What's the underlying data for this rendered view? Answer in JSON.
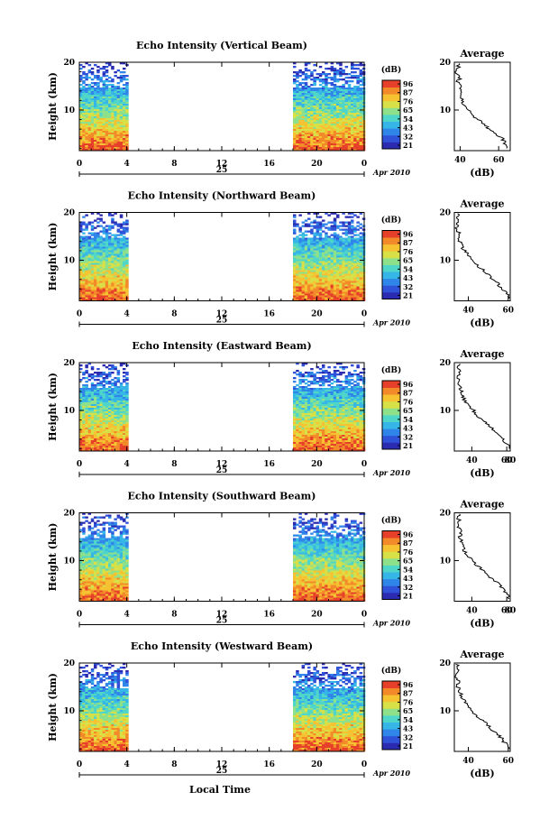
{
  "figure": {
    "date_label": "Apr 2010",
    "day_label": "25",
    "bottom_xlabel": "Local Time",
    "colorbar_unit": "(dB)",
    "colorbar_ticks": [
      "96",
      "87",
      "76",
      "65",
      "54",
      "43",
      "32",
      "21"
    ],
    "colormap": [
      "#2a2bb0",
      "#2f52d8",
      "#2f86e8",
      "#35b6e6",
      "#4fd6c8",
      "#8fe08a",
      "#d8e048",
      "#f6c232",
      "#f38a2a",
      "#e6402a"
    ]
  },
  "chart_data": [
    {
      "type": "heatmap",
      "title": "Echo Intensity (Vertical Beam)",
      "ylabel": "Height (km)",
      "x_ticks": [
        "0",
        "4",
        "8",
        "12",
        "16",
        "20",
        "0"
      ],
      "y_ticks": [
        "10",
        "20"
      ],
      "xlim": [
        0,
        24
      ],
      "ylim": [
        1.5,
        20
      ],
      "data_intervals_hours": [
        [
          0,
          4
        ],
        [
          18,
          24
        ]
      ],
      "colorbar_range": [
        21,
        96
      ],
      "profile": {
        "title": "Average",
        "xlabel": "(dB)",
        "x_ticks": [
          "40",
          "60"
        ],
        "y_ticks": [
          "10",
          "20"
        ],
        "xlim": [
          37,
          66
        ],
        "points": [
          [
            65,
            2
          ],
          [
            63,
            3
          ],
          [
            62,
            4
          ],
          [
            58,
            5
          ],
          [
            55,
            6
          ],
          [
            53,
            7
          ],
          [
            49,
            8
          ],
          [
            46,
            9
          ],
          [
            44,
            10
          ],
          [
            42,
            11
          ],
          [
            41,
            12
          ],
          [
            40,
            13
          ],
          [
            41,
            14
          ],
          [
            40,
            15
          ],
          [
            39,
            16
          ],
          [
            40,
            17
          ],
          [
            38,
            18
          ],
          [
            39,
            19
          ],
          [
            40,
            20
          ]
        ]
      }
    },
    {
      "type": "heatmap",
      "title": "Echo Intensity (Northward Beam)",
      "ylabel": "Height (km)",
      "x_ticks": [
        "0",
        "4",
        "8",
        "12",
        "16",
        "20",
        "0"
      ],
      "y_ticks": [
        "10",
        "20"
      ],
      "xlim": [
        0,
        24
      ],
      "ylim": [
        1.5,
        20
      ],
      "data_intervals_hours": [
        [
          0,
          4
        ],
        [
          18,
          24
        ]
      ],
      "colorbar_range": [
        21,
        96
      ],
      "profile": {
        "title": "Average",
        "xlabel": "(dB)",
        "x_ticks": [
          "40",
          "60"
        ],
        "y_ticks": [
          "10",
          "20"
        ],
        "xlim": [
          33,
          61
        ],
        "points": [
          [
            61,
            2
          ],
          [
            59,
            3
          ],
          [
            57,
            4
          ],
          [
            55,
            5
          ],
          [
            52,
            6
          ],
          [
            50,
            7
          ],
          [
            47,
            8
          ],
          [
            44,
            9
          ],
          [
            42,
            10
          ],
          [
            40,
            11
          ],
          [
            38,
            12
          ],
          [
            37,
            13
          ],
          [
            36,
            14
          ],
          [
            35,
            15
          ],
          [
            35,
            16
          ],
          [
            34,
            17
          ],
          [
            35,
            18
          ],
          [
            34,
            19
          ],
          [
            35,
            20
          ]
        ]
      }
    },
    {
      "type": "heatmap",
      "title": "Echo Intensity (Eastward Beam)",
      "ylabel": "Height (km)",
      "x_ticks": [
        "0",
        "4",
        "8",
        "12",
        "16",
        "20",
        "0"
      ],
      "y_ticks": [
        "10",
        "20"
      ],
      "xlim": [
        0,
        24
      ],
      "ylim": [
        1.5,
        20
      ],
      "data_intervals_hours": [
        [
          0,
          4
        ],
        [
          18,
          24
        ]
      ],
      "colorbar_range": [
        21,
        96
      ],
      "profile": {
        "title": "Average",
        "xlabel": "(dB)",
        "x_ticks": [
          "40",
          "60",
          "80"
        ],
        "y_ticks": [
          "10",
          "20"
        ],
        "xlim": [
          30,
          62
        ],
        "points": [
          [
            62,
            2
          ],
          [
            60,
            3
          ],
          [
            58,
            4
          ],
          [
            56,
            5
          ],
          [
            52,
            6
          ],
          [
            49,
            7
          ],
          [
            46,
            8
          ],
          [
            43,
            9
          ],
          [
            41,
            10
          ],
          [
            38,
            11
          ],
          [
            36,
            12
          ],
          [
            35,
            13
          ],
          [
            34,
            14
          ],
          [
            33,
            15
          ],
          [
            33,
            16
          ],
          [
            32,
            17
          ],
          [
            33,
            18
          ],
          [
            32,
            19
          ],
          [
            33,
            20
          ]
        ]
      }
    },
    {
      "type": "heatmap",
      "title": "Echo Intensity (Southward Beam)",
      "ylabel": "Height (km)",
      "x_ticks": [
        "0",
        "4",
        "8",
        "12",
        "16",
        "20",
        "0"
      ],
      "y_ticks": [
        "10",
        "20"
      ],
      "xlim": [
        0,
        24
      ],
      "ylim": [
        1.5,
        20
      ],
      "data_intervals_hours": [
        [
          0,
          4
        ],
        [
          18,
          24
        ]
      ],
      "colorbar_range": [
        21,
        96
      ],
      "profile": {
        "title": "Average",
        "xlabel": "(dB)",
        "x_ticks": [
          "40",
          "60",
          "80"
        ],
        "y_ticks": [
          "10",
          "20"
        ],
        "xlim": [
          30,
          62
        ],
        "points": [
          [
            62,
            2
          ],
          [
            60,
            3
          ],
          [
            58,
            4
          ],
          [
            56,
            5
          ],
          [
            52,
            6
          ],
          [
            49,
            7
          ],
          [
            46,
            8
          ],
          [
            43,
            9
          ],
          [
            41,
            10
          ],
          [
            38,
            11
          ],
          [
            36,
            12
          ],
          [
            35,
            13
          ],
          [
            34,
            14
          ],
          [
            33,
            15
          ],
          [
            34,
            16
          ],
          [
            32,
            17
          ],
          [
            33,
            18
          ],
          [
            32,
            19
          ],
          [
            33,
            20
          ]
        ]
      }
    },
    {
      "type": "heatmap",
      "title": "Echo Intensity (Westward Beam)",
      "ylabel": "Height (km)",
      "x_ticks": [
        "0",
        "4",
        "8",
        "12",
        "16",
        "20",
        "0"
      ],
      "y_ticks": [
        "10",
        "20"
      ],
      "xlim": [
        0,
        24
      ],
      "ylim": [
        1.5,
        20
      ],
      "data_intervals_hours": [
        [
          0,
          4
        ],
        [
          18,
          24
        ]
      ],
      "colorbar_range": [
        21,
        96
      ],
      "profile": {
        "title": "Average",
        "xlabel": "(dB)",
        "x_ticks": [
          "40",
          "60"
        ],
        "y_ticks": [
          "10",
          "20"
        ],
        "xlim": [
          33,
          61
        ],
        "points": [
          [
            61,
            2
          ],
          [
            59,
            3
          ],
          [
            57,
            4
          ],
          [
            55,
            5
          ],
          [
            52,
            6
          ],
          [
            50,
            7
          ],
          [
            47,
            8
          ],
          [
            44,
            9
          ],
          [
            42,
            10
          ],
          [
            40,
            11
          ],
          [
            38,
            12
          ],
          [
            37,
            13
          ],
          [
            36,
            14
          ],
          [
            35,
            15
          ],
          [
            35,
            16
          ],
          [
            34,
            17
          ],
          [
            35,
            18
          ],
          [
            34,
            19
          ],
          [
            35,
            20
          ]
        ]
      }
    }
  ]
}
